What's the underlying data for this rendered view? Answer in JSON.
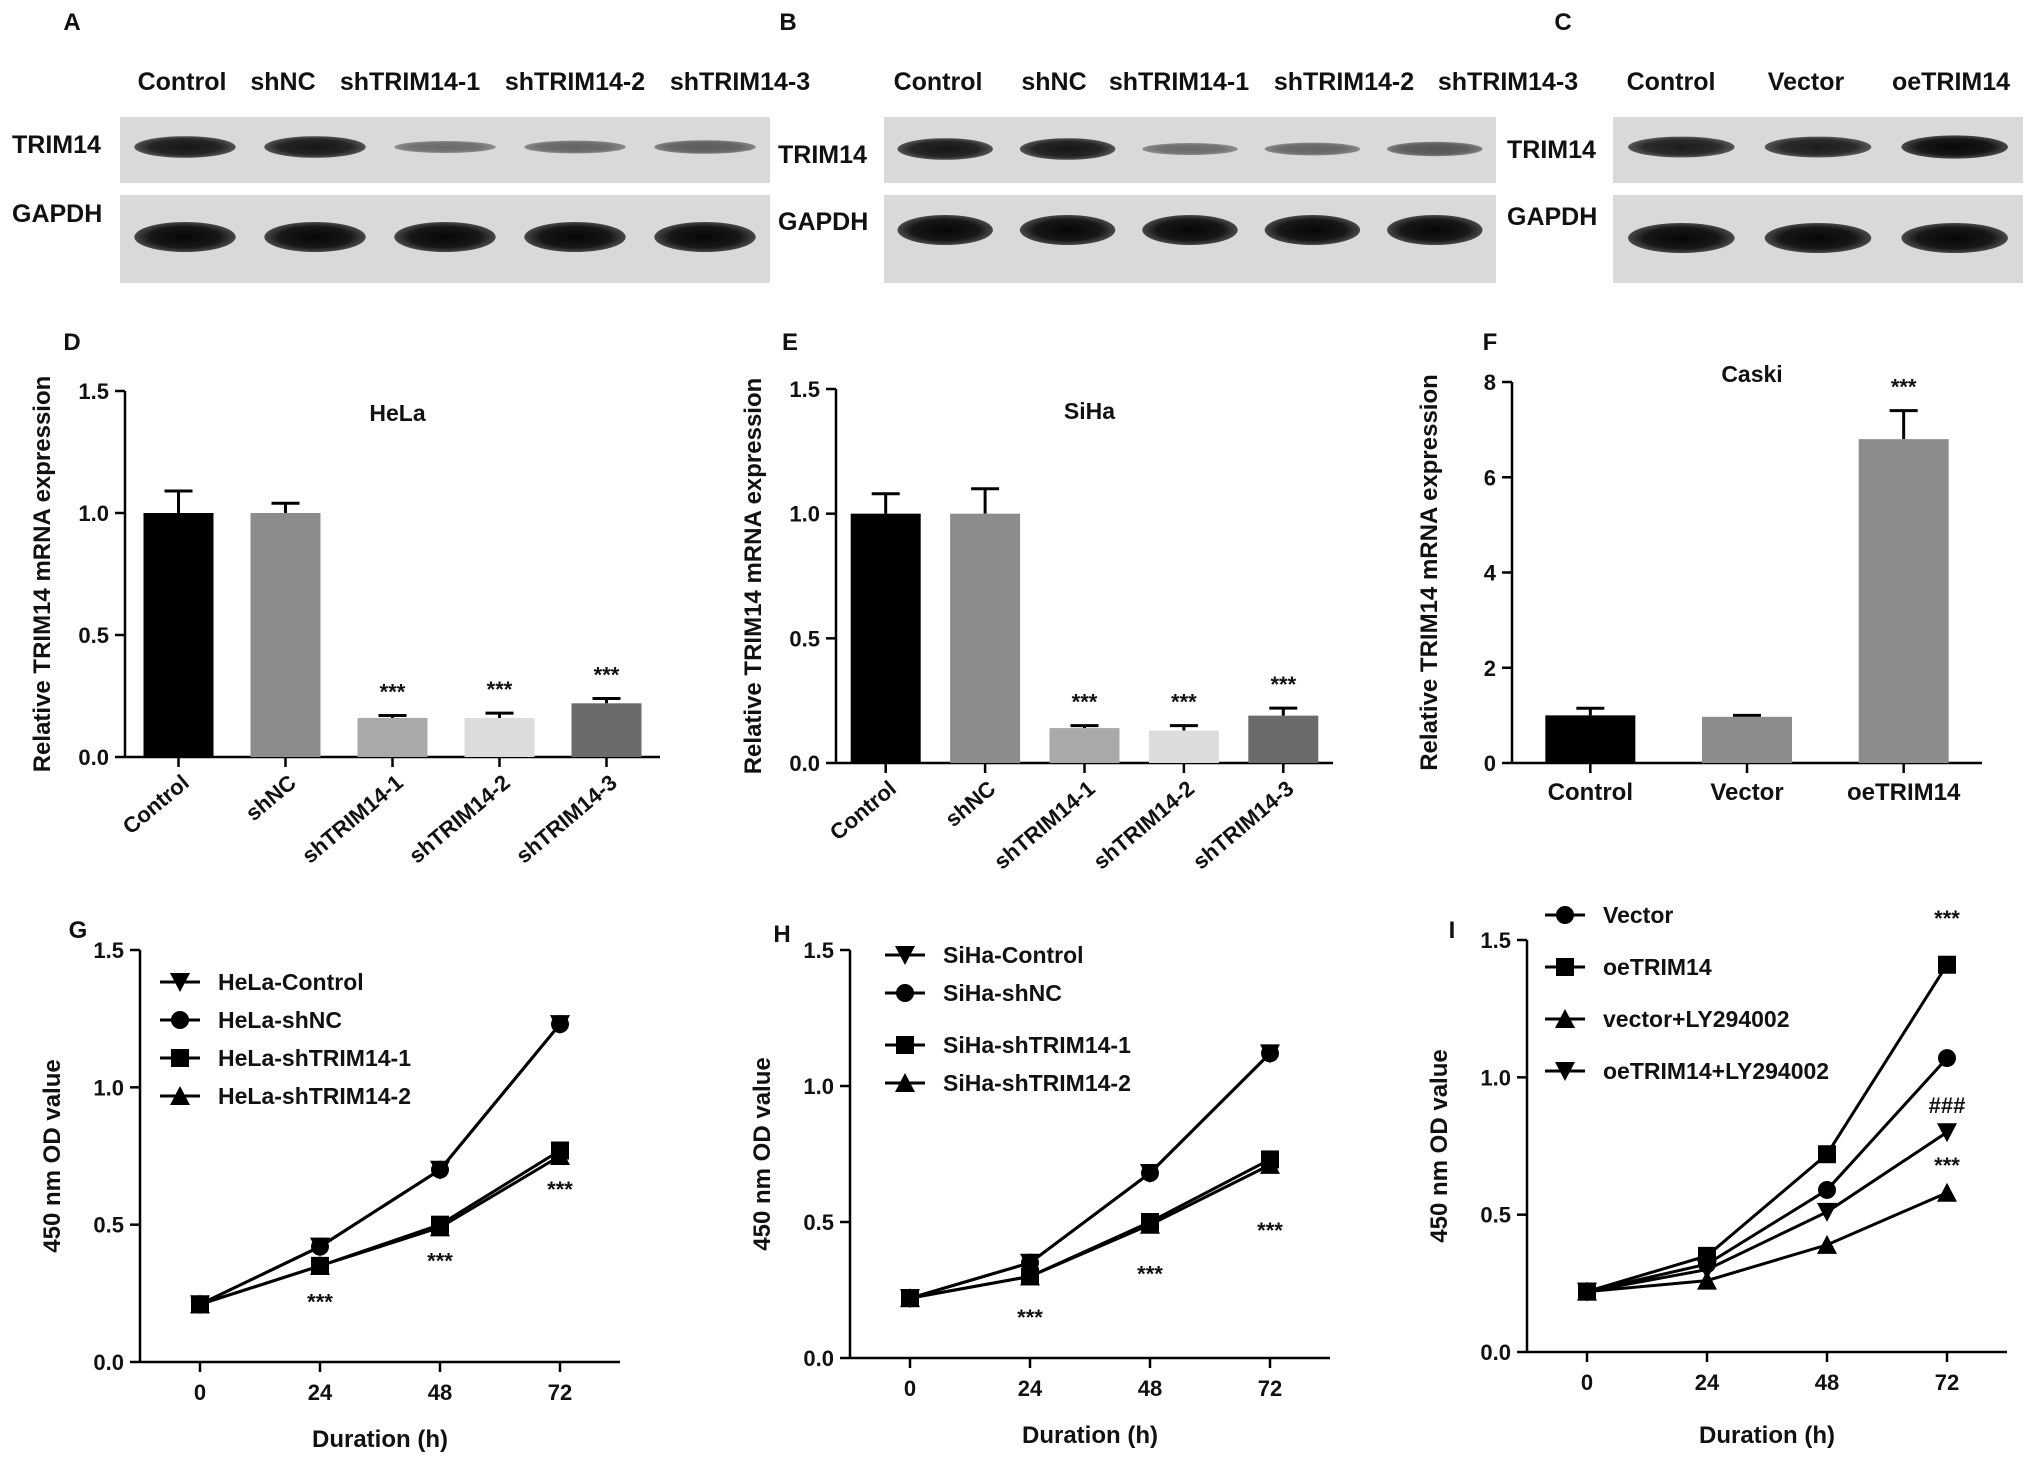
{
  "panel_letters": [
    "A",
    "B",
    "C",
    "D",
    "E",
    "F",
    "G",
    "H",
    "I"
  ],
  "western_blots": [
    {
      "letter": "A",
      "lanes": [
        "Control",
        "shNC",
        "shTRIM14-1",
        "shTRIM14-2",
        "shTRIM14-3"
      ],
      "rows": [
        {
          "label": "TRIM14",
          "intensity": [
            0.85,
            0.85,
            0.25,
            0.3,
            0.35
          ]
        },
        {
          "label": "GAPDH",
          "intensity": [
            0.95,
            0.95,
            0.95,
            0.95,
            0.95
          ]
        }
      ]
    },
    {
      "letter": "B",
      "lanes": [
        "Control",
        "shNC",
        "shTRIM14-1",
        "shTRIM14-2",
        "shTRIM14-3"
      ],
      "rows": [
        {
          "label": "TRIM14",
          "intensity": [
            0.85,
            0.85,
            0.25,
            0.3,
            0.4
          ]
        },
        {
          "label": "GAPDH",
          "intensity": [
            0.95,
            0.95,
            0.95,
            0.95,
            0.95
          ]
        }
      ]
    },
    {
      "letter": "C",
      "lanes": [
        "Control",
        "Vector",
        "oeTRIM14"
      ],
      "rows": [
        {
          "label": "TRIM14",
          "intensity": [
            0.8,
            0.8,
            0.95
          ]
        },
        {
          "label": "GAPDH",
          "intensity": [
            0.95,
            0.95,
            0.95
          ]
        }
      ]
    }
  ],
  "chart_data": [
    {
      "letter": "D",
      "type": "bar",
      "title": "HeLa",
      "ylabel": "Relative TRIM14 mRNA expression",
      "ylim": [
        0,
        1.5
      ],
      "yticks": [
        "0.0",
        "0.5",
        "1.0",
        "1.5"
      ],
      "categories": [
        "Control",
        "shNC",
        "shTRIM14-1",
        "shTRIM14-2",
        "shTRIM14-3"
      ],
      "values": [
        1.0,
        1.0,
        0.16,
        0.16,
        0.22
      ],
      "errors": [
        0.09,
        0.04,
        0.01,
        0.02,
        0.02
      ],
      "colors": [
        "#000000",
        "#8c8c8c",
        "#a9a9a9",
        "#dcdcdc",
        "#6b6b6b"
      ],
      "annotations": [
        "",
        "",
        "***",
        "***",
        "***"
      ]
    },
    {
      "letter": "E",
      "type": "bar",
      "title": "SiHa",
      "ylabel": "Relative TRIM14  mRNA expression",
      "ylim": [
        0,
        1.5
      ],
      "yticks": [
        "0.0",
        "0.5",
        "1.0",
        "1.5"
      ],
      "categories": [
        "Control",
        "shNC",
        "shTRIM14-1",
        "shTRIM14-2",
        "shTRIM14-3"
      ],
      "values": [
        1.0,
        1.0,
        0.14,
        0.13,
        0.19
      ],
      "errors": [
        0.08,
        0.1,
        0.01,
        0.02,
        0.03
      ],
      "colors": [
        "#000000",
        "#8c8c8c",
        "#a9a9a9",
        "#dcdcdc",
        "#6b6b6b"
      ],
      "annotations": [
        "",
        "",
        "***",
        "***",
        "***"
      ]
    },
    {
      "letter": "F",
      "type": "bar",
      "title": "Caski",
      "ylabel": "Relative TRIM14 mRNA expression",
      "ylim": [
        0,
        8
      ],
      "yticks": [
        "0",
        "2",
        "4",
        "6",
        "8"
      ],
      "categories": [
        "Control",
        "Vector",
        "oeTRIM14"
      ],
      "values": [
        1.0,
        0.97,
        6.8
      ],
      "errors": [
        0.15,
        0.03,
        0.6
      ],
      "colors": [
        "#000000",
        "#8c8c8c",
        "#8c8c8c"
      ],
      "annotations": [
        "",
        "",
        "***"
      ]
    },
    {
      "letter": "G",
      "type": "line",
      "xlabel": "Duration (h)",
      "ylabel": "450 nm OD value",
      "ylim": [
        0,
        1.5
      ],
      "yticks": [
        "0.0",
        "0.5",
        "1.0",
        "1.5"
      ],
      "x": [
        0,
        24,
        48,
        72
      ],
      "series": [
        {
          "name": "HeLa-Control",
          "marker": "tri-down",
          "values": [
            0.21,
            0.42,
            0.7,
            1.23
          ]
        },
        {
          "name": "HeLa-shNC",
          "marker": "circle",
          "values": [
            0.21,
            0.42,
            0.7,
            1.23
          ]
        },
        {
          "name": "HeLa-shTRIM14-1",
          "marker": "square",
          "values": [
            0.21,
            0.35,
            0.5,
            0.77
          ]
        },
        {
          "name": "HeLa-shTRIM14-2",
          "marker": "tri-up",
          "values": [
            0.21,
            0.35,
            0.49,
            0.75
          ]
        }
      ],
      "annotations": [
        {
          "x": 24,
          "y": 0.22,
          "text": "***"
        },
        {
          "x": 48,
          "y": 0.37,
          "text": "***"
        },
        {
          "x": 72,
          "y": 0.63,
          "text": "***"
        }
      ]
    },
    {
      "letter": "H",
      "type": "line",
      "xlabel": "Duration (h)",
      "ylabel": "450 nm OD value",
      "ylim": [
        0,
        1.5
      ],
      "yticks": [
        "0.0",
        "0.5",
        "1.0",
        "1.5"
      ],
      "x": [
        0,
        24,
        48,
        72
      ],
      "series": [
        {
          "name": "SiHa-Control",
          "marker": "tri-down",
          "values": [
            0.22,
            0.35,
            0.68,
            1.12
          ]
        },
        {
          "name": "SiHa-shNC",
          "marker": "circle",
          "values": [
            0.22,
            0.35,
            0.68,
            1.12
          ]
        },
        {
          "name": "SiHa-shTRIM14-1",
          "marker": "square",
          "values": [
            0.22,
            0.3,
            0.5,
            0.73
          ]
        },
        {
          "name": "SiHa-shTRIM14-2",
          "marker": "tri-up",
          "values": [
            0.22,
            0.3,
            0.49,
            0.71
          ]
        }
      ],
      "annotations": [
        {
          "x": 24,
          "y": 0.15,
          "text": "***"
        },
        {
          "x": 48,
          "y": 0.31,
          "text": "***"
        },
        {
          "x": 72,
          "y": 0.47,
          "text": "***"
        }
      ]
    },
    {
      "letter": "I",
      "type": "line",
      "xlabel": "Duration (h)",
      "ylabel": "450 nm OD value",
      "ylim": [
        0,
        1.5
      ],
      "yticks": [
        "0.0",
        "0.5",
        "1.0",
        "1.5"
      ],
      "x": [
        0,
        24,
        48,
        72
      ],
      "series": [
        {
          "name": "Vector",
          "marker": "circle",
          "values": [
            0.22,
            0.32,
            0.59,
            1.07
          ]
        },
        {
          "name": "oeTRIM14",
          "marker": "square",
          "values": [
            0.22,
            0.35,
            0.72,
            1.41
          ]
        },
        {
          "name": "vector+LY294002",
          "marker": "tri-up",
          "values": [
            0.22,
            0.26,
            0.39,
            0.58
          ]
        },
        {
          "name": "oeTRIM14+LY294002",
          "marker": "tri-down",
          "values": [
            0.22,
            0.3,
            0.51,
            0.8
          ]
        }
      ],
      "annotations": [
        {
          "x": 72,
          "y": 1.58,
          "text": "***"
        },
        {
          "x": 72,
          "y": 0.9,
          "text": "###"
        },
        {
          "x": 72,
          "y": 0.68,
          "text": "***"
        }
      ]
    }
  ]
}
